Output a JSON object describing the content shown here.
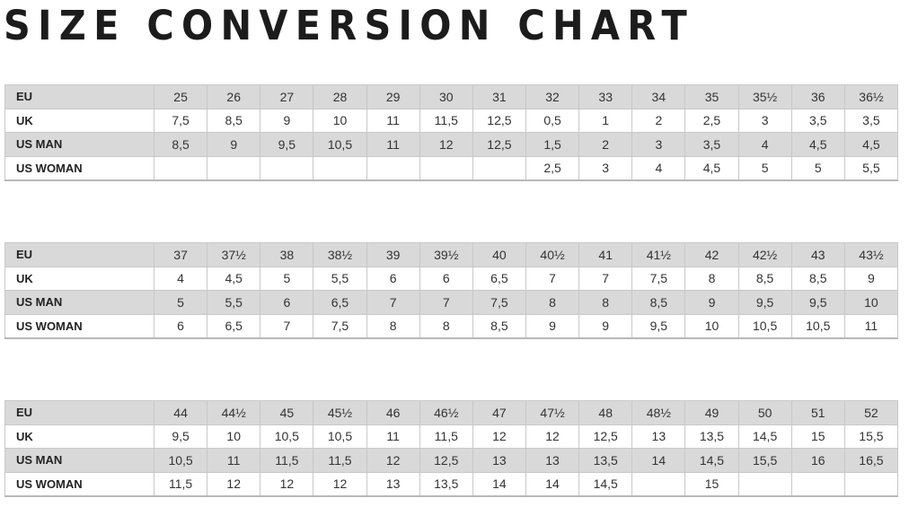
{
  "title": "SIZE CONVERSION CHART",
  "row_labels": [
    "EU",
    "UK",
    "US MAN",
    "US WOMAN"
  ],
  "tables": [
    {
      "rows": [
        [
          "25",
          "26",
          "27",
          "28",
          "29",
          "30",
          "31",
          "32",
          "33",
          "34",
          "35",
          "35½",
          "36",
          "36½"
        ],
        [
          "7,5",
          "8,5",
          "9",
          "10",
          "11",
          "11,5",
          "12,5",
          "0,5",
          "1",
          "2",
          "2,5",
          "3",
          "3,5",
          "3,5"
        ],
        [
          "8,5",
          "9",
          "9,5",
          "10,5",
          "11",
          "12",
          "12,5",
          "1,5",
          "2",
          "3",
          "3,5",
          "4",
          "4,5",
          "4,5"
        ],
        [
          "",
          "",
          "",
          "",
          "",
          "",
          "",
          "2,5",
          "3",
          "4",
          "4,5",
          "5",
          "5",
          "5,5"
        ]
      ]
    },
    {
      "rows": [
        [
          "37",
          "37½",
          "38",
          "38½",
          "39",
          "39½",
          "40",
          "40½",
          "41",
          "41½",
          "42",
          "42½",
          "43",
          "43½"
        ],
        [
          "4",
          "4,5",
          "5",
          "5,5",
          "6",
          "6",
          "6,5",
          "7",
          "7",
          "7,5",
          "8",
          "8,5",
          "8,5",
          "9"
        ],
        [
          "5",
          "5,5",
          "6",
          "6,5",
          "7",
          "7",
          "7,5",
          "8",
          "8",
          "8,5",
          "9",
          "9,5",
          "9,5",
          "10"
        ],
        [
          "6",
          "6,5",
          "7",
          "7,5",
          "8",
          "8",
          "8,5",
          "9",
          "9",
          "9,5",
          "10",
          "10,5",
          "10,5",
          "11"
        ]
      ]
    },
    {
      "rows": [
        [
          "44",
          "44½",
          "45",
          "45½",
          "46",
          "46½",
          "47",
          "47½",
          "48",
          "48½",
          "49",
          "50",
          "51",
          "52"
        ],
        [
          "9,5",
          "10",
          "10,5",
          "10,5",
          "11",
          "11,5",
          "12",
          "12",
          "12,5",
          "13",
          "13,5",
          "14,5",
          "15",
          "15,5"
        ],
        [
          "10,5",
          "11",
          "11,5",
          "11,5",
          "12",
          "12,5",
          "13",
          "13",
          "13,5",
          "14",
          "14,5",
          "15,5",
          "16",
          "16,5"
        ],
        [
          "11,5",
          "12",
          "12",
          "12",
          "13",
          "13,5",
          "14",
          "14",
          "14,5",
          "",
          "15",
          "",
          "",
          ""
        ]
      ]
    }
  ]
}
